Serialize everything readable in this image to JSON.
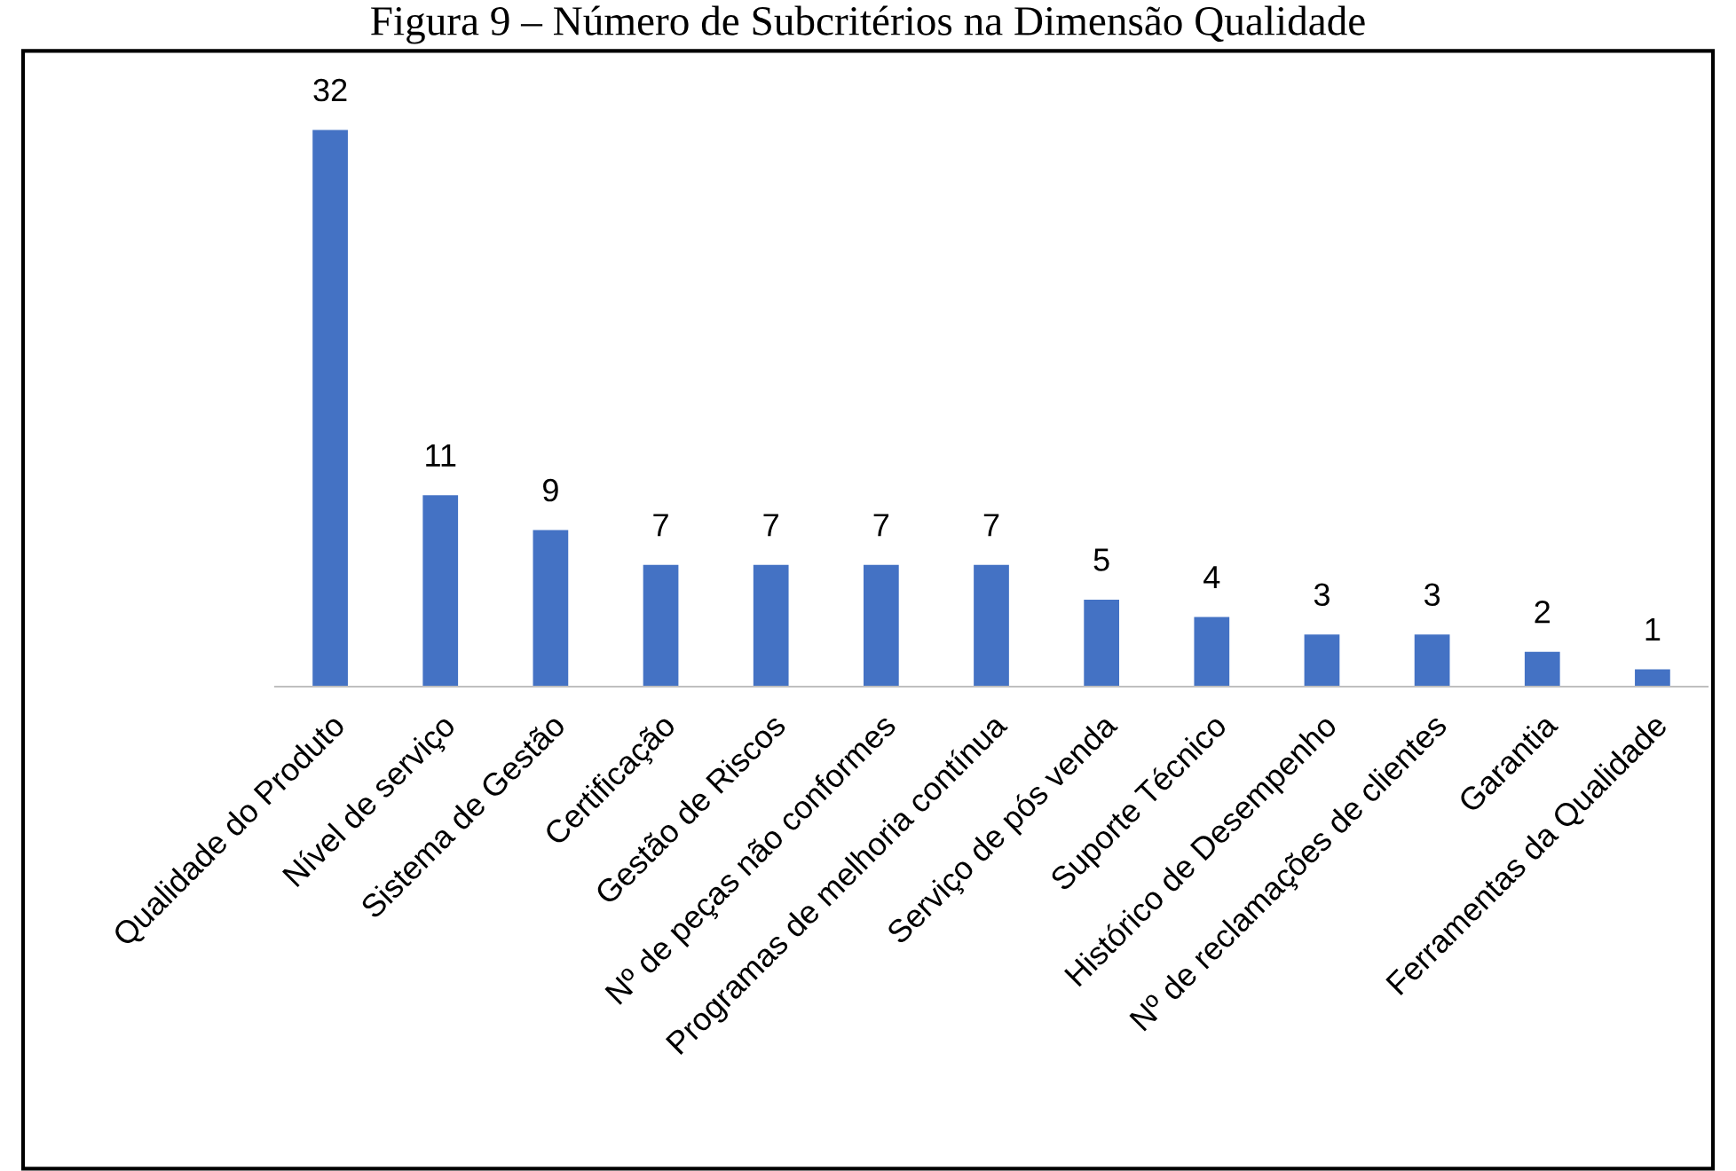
{
  "chart_data": {
    "type": "bar",
    "title": "Figura 9 – Número de Subcritérios na Dimensão Qualidade",
    "categories": [
      "Qualidade do Produto",
      "Nível de serviço",
      "Sistema de Gestão",
      "Certificação",
      "Gestão de Riscos",
      "Nº de peças não conformes",
      "Programas de melhoria contínua",
      "Serviço de pós venda",
      "Suporte Técnico",
      "Histórico de Desempenho",
      "Nº de reclamações de clientes",
      "Garantia",
      "Ferramentas da Qualidade"
    ],
    "values": [
      32,
      11,
      9,
      7,
      7,
      7,
      7,
      5,
      4,
      3,
      3,
      2,
      1
    ],
    "color": "#4472c4",
    "data_labels": true
  }
}
